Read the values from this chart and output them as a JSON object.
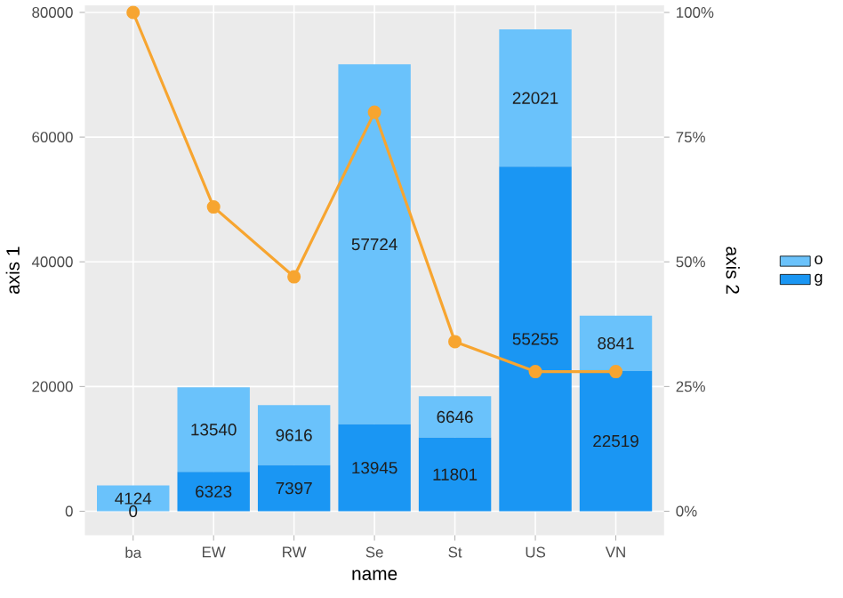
{
  "chart_data": {
    "type": "bar",
    "stacked": true,
    "xlabel": "name",
    "ylabel": "axis 1",
    "y2label": "axis 2",
    "categories": [
      "ba",
      "EW",
      "RW",
      "Se",
      "St",
      "US",
      "VN"
    ],
    "series": [
      {
        "name": "g",
        "color": "#1a96f3",
        "values": [
          0,
          6323,
          7397,
          13945,
          11801,
          55255,
          22519
        ],
        "value_labels": [
          "0",
          "6323",
          "7397",
          "13945",
          "11801",
          "55255",
          "22519"
        ]
      },
      {
        "name": "o",
        "color": "#6ac2fb",
        "values": [
          4124,
          13540,
          9616,
          57724,
          6646,
          22021,
          8841
        ],
        "value_labels": [
          "4124",
          "13540",
          "9616",
          "57724",
          "6646",
          "22021",
          "8841"
        ]
      },
      {
        "type": "line",
        "axis": "y2",
        "color": "#f7a530",
        "values": [
          100,
          61,
          47,
          80,
          34,
          28,
          28
        ]
      }
    ],
    "ylim": [
      -3864,
      81140
    ],
    "yticks": [
      0,
      20000,
      40000,
      60000,
      80000
    ],
    "y2lim": [
      -4.83,
      101.43
    ],
    "y2ticks": [
      {
        "value": 0,
        "label": "0%"
      },
      {
        "value": 25,
        "label": "25%"
      },
      {
        "value": 50,
        "label": "50%"
      },
      {
        "value": 75,
        "label": "75%"
      },
      {
        "value": 100,
        "label": "100%"
      }
    ],
    "grid": true,
    "legend": "right",
    "marker": "circle",
    "line_style": "solid"
  }
}
